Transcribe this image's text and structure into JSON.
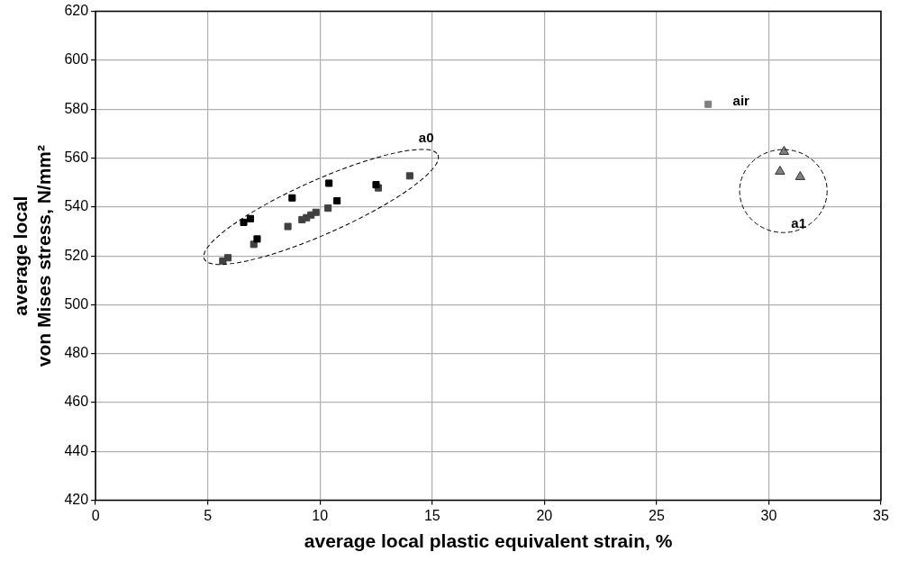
{
  "chart_data": {
    "type": "scatter",
    "xlabel": "average local plastic equivalent strain, %",
    "ylabel": "average local\nvon Mises stress, N/mm²",
    "xlim": [
      0,
      35
    ],
    "xticks": [
      0,
      5,
      10,
      15,
      20,
      25,
      30,
      35
    ],
    "ylim": [
      420,
      620
    ],
    "yticks": [
      420,
      440,
      460,
      480,
      500,
      520,
      540,
      560,
      580,
      600,
      620
    ],
    "grid": true,
    "marker": "square",
    "series": [
      {
        "color": "#000000",
        "x": [
          10.4,
          8.76,
          10.76,
          6.9,
          6.6,
          7.2,
          12.5
        ],
        "values": [
          549.7,
          543.7,
          542.5,
          535.2,
          533.7,
          526.9,
          549.1
        ]
      },
      {
        "color": "#404040",
        "x": [
          14.0,
          12.6,
          10.36,
          9.82,
          9.6,
          9.4,
          9.2,
          8.57,
          7.05,
          5.9,
          5.67
        ],
        "values": [
          552.7,
          547.8,
          539.5,
          537.8,
          536.7,
          535.6,
          534.8,
          532,
          524.7,
          519.2,
          517.9
        ]
      },
      {
        "color": "#808080",
        "marker": "triangle",
        "x": [
          30.68,
          30.5,
          31.4
        ],
        "values": [
          562.6,
          554.5,
          552.3
        ]
      },
      {
        "color": "#808080",
        "x": [
          27.3
        ],
        "values": [
          582
        ]
      }
    ],
    "annotations": [
      "a0",
      "a1",
      "air"
    ]
  }
}
